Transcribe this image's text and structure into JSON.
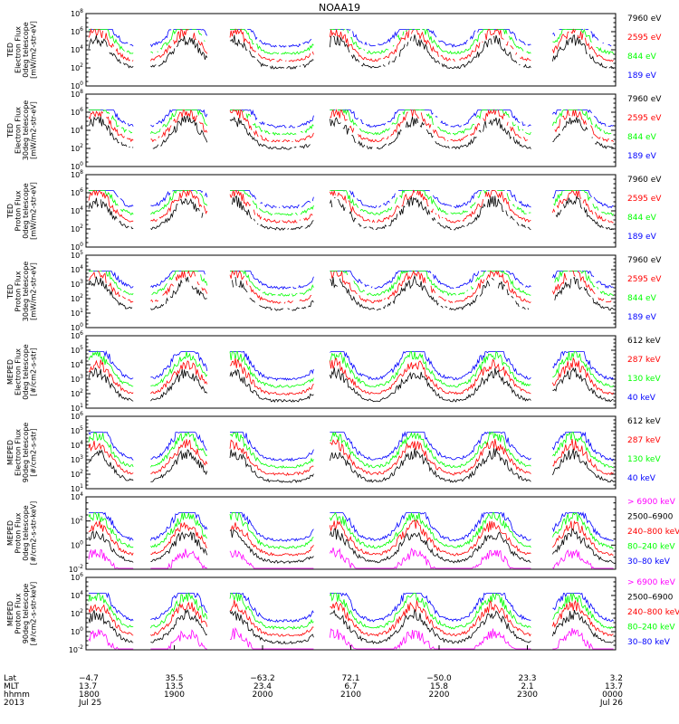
{
  "title": "NOAA19",
  "colors": {
    "blue": "#0000ff",
    "red": "#ff0000",
    "green": "#00ff00",
    "black": "#000000",
    "magenta": "#ff00ff"
  },
  "chart_data": {
    "type": "line",
    "x_ticks": [
      {
        "lat": "−4.7",
        "mlt": "13.7",
        "hhmm": "1800",
        "date": "Jul 25"
      },
      {
        "lat": "35.5",
        "mlt": "13.5",
        "hhmm": "1900",
        "date": ""
      },
      {
        "lat": "−63.2",
        "mlt": "23.4",
        "hhmm": "2000",
        "date": ""
      },
      {
        "lat": "72.1",
        "mlt": "6.7",
        "hhmm": "2100",
        "date": ""
      },
      {
        "lat": "−50.0",
        "mlt": "15.8",
        "hhmm": "2200",
        "date": ""
      },
      {
        "lat": "23.3",
        "mlt": "2.1",
        "hhmm": "2300",
        "date": ""
      },
      {
        "lat": "3.2",
        "mlt": "13.7",
        "hhmm": "0000",
        "date": "Jul 26"
      }
    ],
    "x_row_labels": [
      "Lat",
      "MLT",
      "hhmm",
      "2013"
    ],
    "panels": [
      {
        "ylabel": [
          "TED",
          "Electron Flux",
          "0deg telescope",
          "[mW/m2-str-eV]"
        ],
        "yexp": [
          0,
          2,
          4,
          6,
          8
        ],
        "legend": [
          {
            "text": "7960 eV",
            "color": "black"
          },
          {
            "text": "2595 eV",
            "color": "red"
          },
          {
            "text": "844 eV",
            "color": "green"
          },
          {
            "text": "189 eV",
            "color": "blue"
          }
        ]
      },
      {
        "ylabel": [
          "TED",
          "Electron Flux",
          "30deg telescope",
          "[mW/m2-str-eV]"
        ],
        "yexp": [
          0,
          2,
          4,
          6,
          8
        ],
        "legend": [
          {
            "text": "7960 eV",
            "color": "black"
          },
          {
            "text": "2595 eV",
            "color": "red"
          },
          {
            "text": "844 eV",
            "color": "green"
          },
          {
            "text": "189 eV",
            "color": "blue"
          }
        ]
      },
      {
        "ylabel": [
          "TED",
          "Proton Flux",
          "0deg telescope",
          "[mW/m2-str-eV]"
        ],
        "yexp": [
          0,
          2,
          4,
          6,
          8
        ],
        "legend": [
          {
            "text": "7960 eV",
            "color": "black"
          },
          {
            "text": "2595 eV",
            "color": "red"
          },
          {
            "text": "844 eV",
            "color": "green"
          },
          {
            "text": "189 eV",
            "color": "blue"
          }
        ]
      },
      {
        "ylabel": [
          "TED",
          "Proton Flux",
          "30deg telescope",
          "[mW/m2-str-eV]"
        ],
        "yexp": [
          0,
          1,
          2,
          3,
          4,
          5
        ],
        "legend": [
          {
            "text": "7960 eV",
            "color": "black"
          },
          {
            "text": "2595 eV",
            "color": "red"
          },
          {
            "text": "844 eV",
            "color": "green"
          },
          {
            "text": "189 eV",
            "color": "blue"
          }
        ]
      },
      {
        "ylabel": [
          "MEPED",
          "Electron Flux",
          "0deg telescope",
          "[#/cm2-s-str]"
        ],
        "yexp": [
          1,
          2,
          3,
          4,
          5,
          6
        ],
        "legend": [
          {
            "text": "612 keV",
            "color": "black"
          },
          {
            "text": "287 keV",
            "color": "red"
          },
          {
            "text": "130 keV",
            "color": "green"
          },
          {
            "text": "40 keV",
            "color": "blue"
          }
        ]
      },
      {
        "ylabel": [
          "MEPED",
          "Electron Flux",
          "90deg telescope",
          "[#/cm2-s-str]"
        ],
        "yexp": [
          1,
          2,
          3,
          4,
          5,
          6
        ],
        "legend": [
          {
            "text": "612 keV",
            "color": "black"
          },
          {
            "text": "287 keV",
            "color": "red"
          },
          {
            "text": "130 keV",
            "color": "green"
          },
          {
            "text": "40 keV",
            "color": "blue"
          }
        ]
      },
      {
        "ylabel": [
          "MEPED",
          "Proton Flux",
          "0deg telescope",
          "[#/cm2-s-str-keV]"
        ],
        "yexp": [
          -2,
          0,
          2,
          4
        ],
        "legend": [
          {
            "text": "> 6900 keV",
            "color": "magenta"
          },
          {
            "text": "2500–6900",
            "color": "black"
          },
          {
            "text": "240–800 keV",
            "color": "red"
          },
          {
            "text": "80–240 keV",
            "color": "green"
          },
          {
            "text": "30–80 keV",
            "color": "blue"
          }
        ]
      },
      {
        "ylabel": [
          "MEPED",
          "Proton Flux",
          "90deg telescope",
          "[#/cm2-s-str-keV]"
        ],
        "yexp": [
          -2,
          0,
          2,
          4,
          6
        ],
        "legend": [
          {
            "text": "> 6900 keV",
            "color": "magenta"
          },
          {
            "text": "2500–6900",
            "color": "black"
          },
          {
            "text": "240–800 keV",
            "color": "red"
          },
          {
            "text": "80–240 keV",
            "color": "green"
          },
          {
            "text": "30–80 keV",
            "color": "blue"
          }
        ]
      }
    ]
  }
}
